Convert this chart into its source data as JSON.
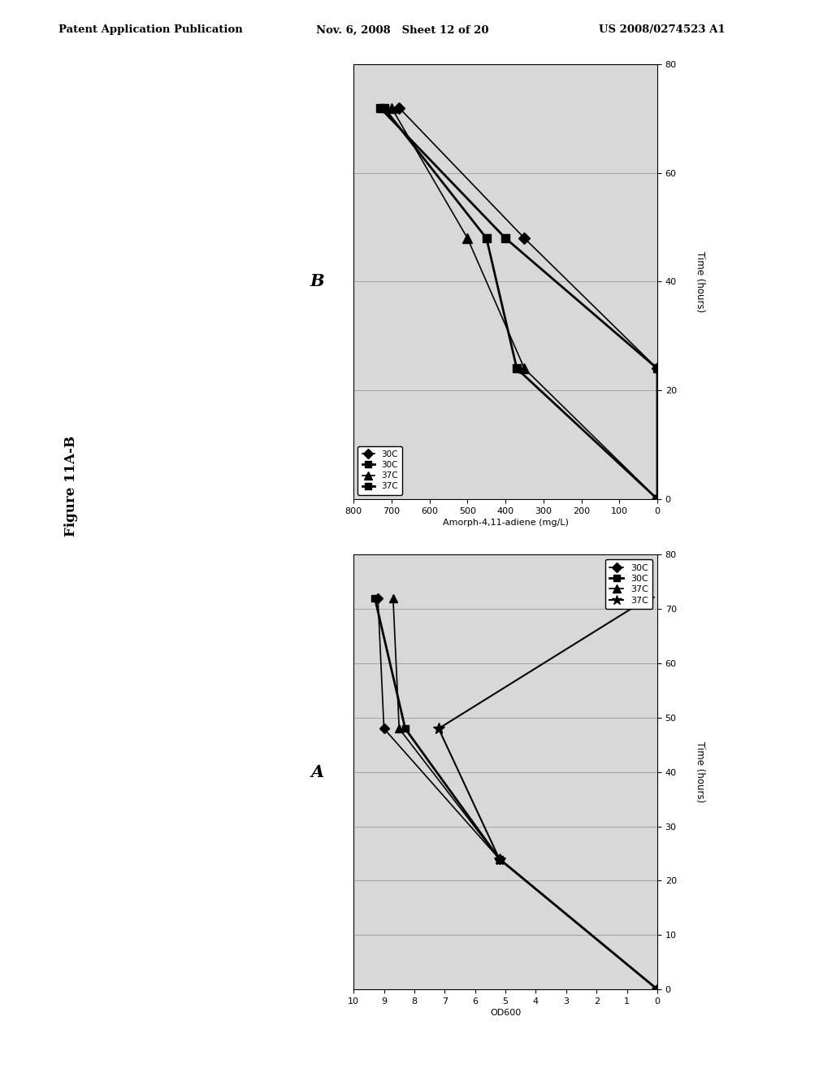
{
  "header_left": "Patent Application Publication",
  "header_mid": "Nov. 6, 2008   Sheet 12 of 20",
  "header_right": "US 2008/0274523 A1",
  "figure_label": "Figure 11A-B",
  "panel_A_label": "A",
  "panel_B_label": "B",
  "fig_bg": "#ffffff",
  "plot_bg": "#d8d8d8",
  "panel_B": {
    "xlabel": "Amorph-4,11-adiene (mg/L)",
    "ylabel": "Time (hours)",
    "xlim_left": 800,
    "xlim_right": 0,
    "ylim_bottom": 0,
    "ylim_top": 80,
    "xticks": [
      800,
      700,
      600,
      500,
      400,
      300,
      200,
      100,
      0
    ],
    "yticks": [
      0,
      20,
      40,
      60,
      80
    ],
    "series": [
      {
        "amorph": [
          0,
          0,
          350,
          680
        ],
        "time": [
          0,
          24,
          48,
          72
        ],
        "marker": "D",
        "lw": 1.2,
        "ms": 7,
        "label": "30C"
      },
      {
        "amorph": [
          0,
          0,
          400,
          730
        ],
        "time": [
          0,
          24,
          48,
          72
        ],
        "marker": "s",
        "lw": 2.0,
        "ms": 7,
        "label": "30C"
      },
      {
        "amorph": [
          0,
          350,
          500,
          700
        ],
        "time": [
          0,
          24,
          48,
          72
        ],
        "marker": "^",
        "lw": 1.2,
        "ms": 8,
        "label": "37C"
      },
      {
        "amorph": [
          0,
          370,
          450,
          720
        ],
        "time": [
          0,
          24,
          48,
          72
        ],
        "marker": "s",
        "lw": 2.0,
        "ms": 7,
        "label": "37C"
      }
    ],
    "legend_labels": [
      "30C",
      "30C",
      "37C",
      "37C"
    ]
  },
  "panel_A": {
    "xlabel": "OD600",
    "ylabel": "Time (hours)",
    "xlim_left": 10,
    "xlim_right": 0,
    "ylim_bottom": 0,
    "ylim_top": 80,
    "xticks": [
      10,
      9,
      8,
      7,
      6,
      5,
      4,
      3,
      2,
      1,
      0
    ],
    "yticks": [
      0,
      10,
      20,
      30,
      40,
      50,
      60,
      70,
      80
    ],
    "series": [
      {
        "od": [
          0,
          5.2,
          9.0,
          9.2
        ],
        "time": [
          0,
          24,
          48,
          72
        ],
        "marker": "D",
        "lw": 1.2,
        "ms": 6,
        "label": "30C"
      },
      {
        "od": [
          0,
          5.2,
          8.3,
          9.3
        ],
        "time": [
          0,
          24,
          48,
          72
        ],
        "marker": "s",
        "lw": 2.0,
        "ms": 6,
        "label": "30C"
      },
      {
        "od": [
          0,
          5.2,
          8.5,
          8.7
        ],
        "time": [
          0,
          24,
          48,
          72
        ],
        "marker": "^",
        "lw": 1.2,
        "ms": 7,
        "label": "37C"
      },
      {
        "od": [
          0,
          5.2,
          7.2,
          0.3
        ],
        "time": [
          0,
          24,
          48,
          72
        ],
        "marker": "*",
        "lw": 1.5,
        "ms": 9,
        "label": "37C"
      }
    ],
    "legend_labels": [
      "30C",
      "30C",
      "37C",
      "37C"
    ]
  }
}
